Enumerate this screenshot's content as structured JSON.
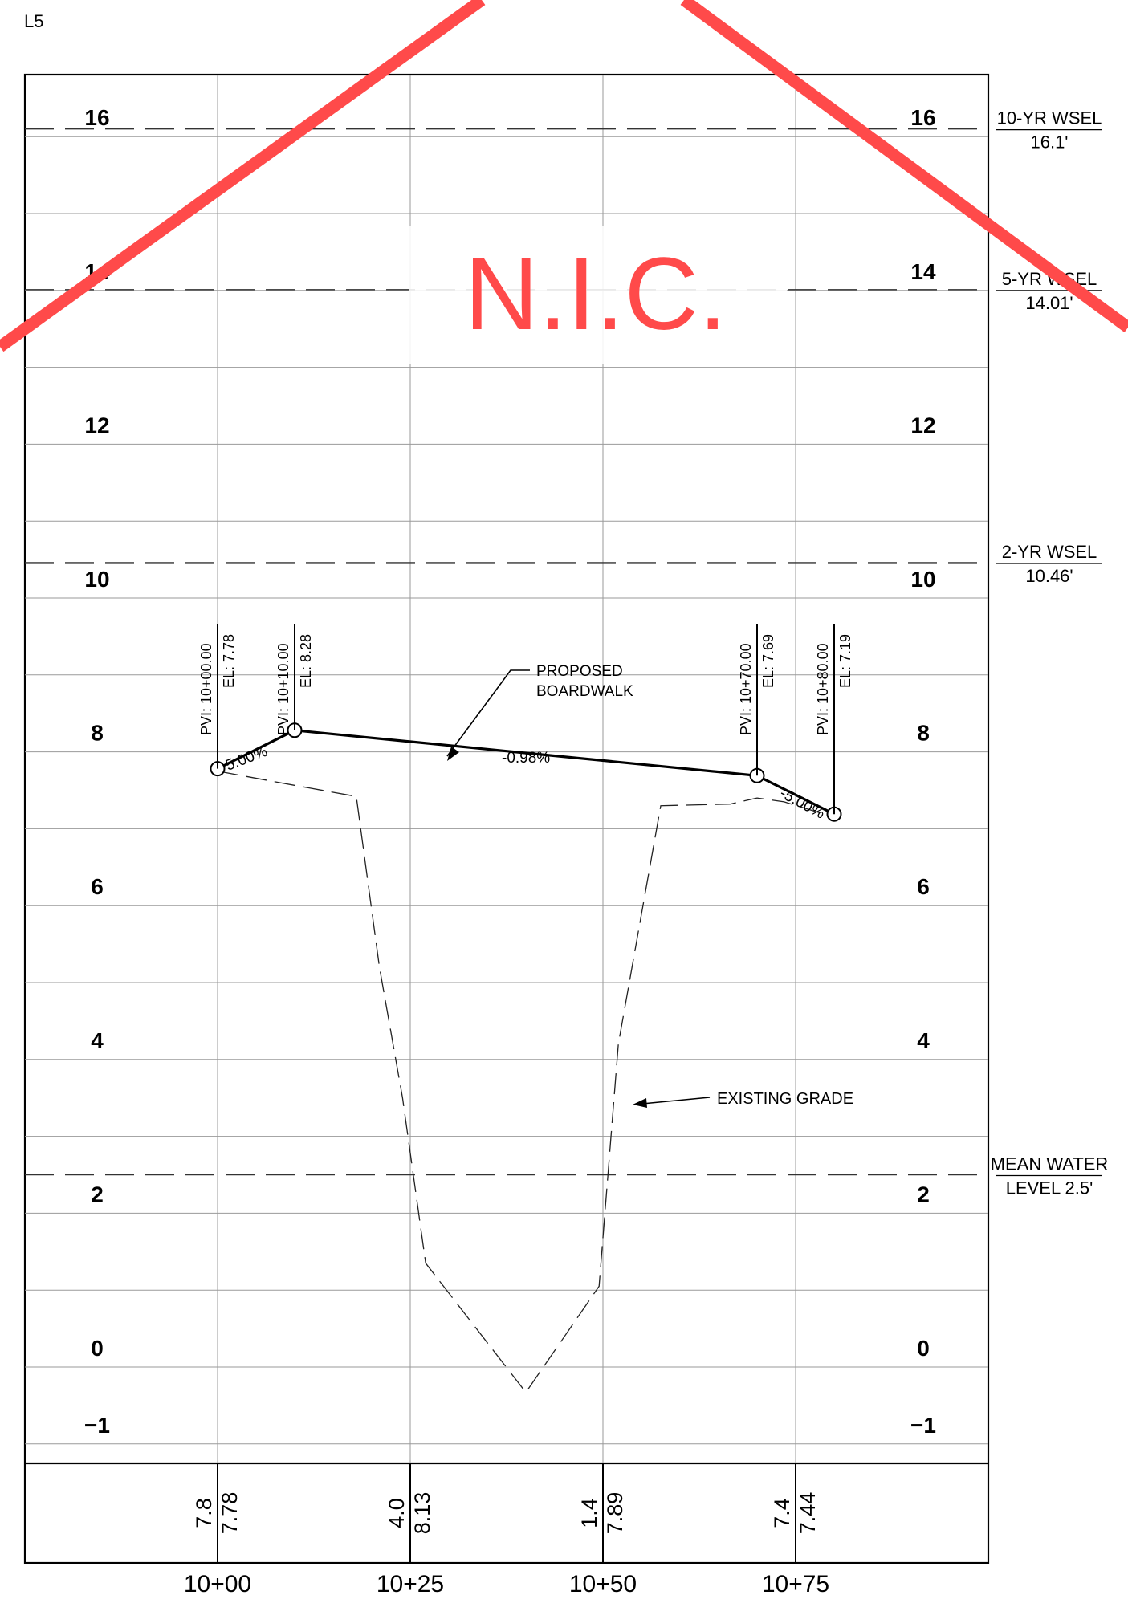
{
  "sheet_tag": "L5",
  "stamp": {
    "text": "N.I.C.",
    "color": "#ff4a4a"
  },
  "elevation_labels": [
    "16",
    "14",
    "12",
    "10",
    "8",
    "6",
    "4",
    "2",
    "0",
    "−1"
  ],
  "elevation_values": [
    16,
    14,
    12,
    10,
    8,
    6,
    4,
    2,
    0,
    -1
  ],
  "stations": [
    "10+00",
    "10+25",
    "10+50",
    "10+75"
  ],
  "station_values": [
    0,
    25,
    50,
    75
  ],
  "water_levels": [
    {
      "line1": "10-YR WSEL",
      "line2": "16.1'",
      "elevation": 16.1
    },
    {
      "line1": "5-YR WSEL",
      "line2": "14.01'",
      "elevation": 14.01
    },
    {
      "line1": "2-YR WSEL",
      "line2": "10.46'",
      "elevation": 10.46
    },
    {
      "line1": "MEAN WATER",
      "line2": "LEVEL 2.5'",
      "elevation": 2.5
    }
  ],
  "pvi": [
    {
      "station": "PVI: 10+00.00",
      "elevation": "EL: 7.78",
      "x": 0,
      "y": 7.78
    },
    {
      "station": "PVI: 10+10.00",
      "elevation": "EL: 8.28",
      "x": 10,
      "y": 8.28
    },
    {
      "station": "PVI: 10+70.00",
      "elevation": "EL: 7.69",
      "x": 70,
      "y": 7.69
    },
    {
      "station": "PVI: 10+80.00",
      "elevation": "EL: 7.19",
      "x": 80,
      "y": 7.19
    }
  ],
  "grades": [
    "5.00%",
    "-0.98%",
    "-5.00%"
  ],
  "annotations": {
    "proposed": [
      "PROPOSED",
      "BOARDWALK"
    ],
    "existing": "EXISTING  GRADE"
  },
  "existing_grade": [
    [
      0,
      7.75
    ],
    [
      8,
      7.6
    ],
    [
      18,
      7.42
    ],
    [
      21,
      5.2
    ],
    [
      24,
      3.5
    ],
    [
      27,
      1.35
    ],
    [
      40,
      -0.33
    ],
    [
      49.5,
      1.05
    ],
    [
      52,
      4.2
    ],
    [
      57.5,
      7.3
    ],
    [
      66.5,
      7.32
    ],
    [
      70,
      7.4
    ],
    [
      73.5,
      7.35
    ],
    [
      80,
      7.15
    ]
  ],
  "elevation_table": [
    {
      "existing": "7.8",
      "proposed": "7.78"
    },
    {
      "existing": "4.0",
      "proposed": "8.13"
    },
    {
      "existing": "1.4",
      "proposed": "7.89"
    },
    {
      "existing": "7.4",
      "proposed": "7.44"
    }
  ]
}
